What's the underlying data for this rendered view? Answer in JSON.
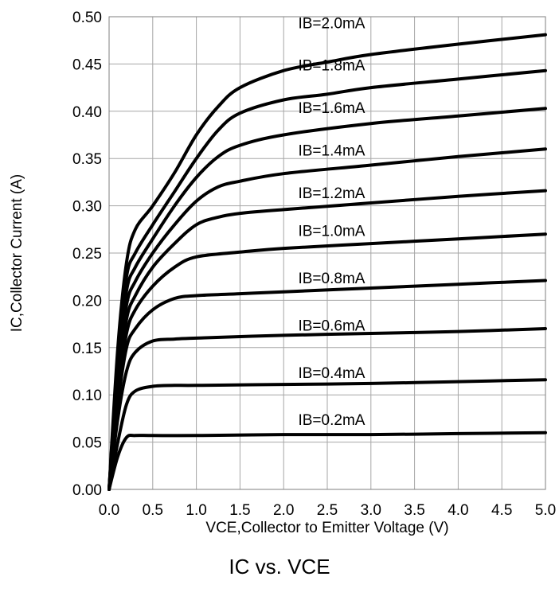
{
  "chart_data": {
    "type": "line",
    "title": "IC vs. VCE",
    "xlabel": "VCE,Collector to Emitter Voltage  (V)",
    "ylabel": "IC,Collector Current (A)",
    "xlim": [
      0,
      5
    ],
    "ylim": [
      0,
      0.5
    ],
    "xticks": [
      "0.0",
      "0.5",
      "1.0",
      "1.5",
      "2.0",
      "2.5",
      "3.0",
      "3.5",
      "4.0",
      "4.5",
      "5.0"
    ],
    "yticks": [
      "0.00",
      "0.05",
      "0.10",
      "0.15",
      "0.20",
      "0.25",
      "0.30",
      "0.35",
      "0.40",
      "0.45",
      "0.50"
    ],
    "grid": true,
    "line_color": "#000000",
    "grid_color": "#a6a6a6",
    "series": [
      {
        "name": "IB=0.2mA",
        "label_x": 2.55,
        "label_y": 0.068,
        "x": [
          0,
          0.1,
          0.2,
          0.3,
          0.5,
          1,
          2,
          3,
          4,
          5
        ],
        "y": [
          0,
          0.035,
          0.055,
          0.057,
          0.057,
          0.057,
          0.058,
          0.058,
          0.059,
          0.06
        ]
      },
      {
        "name": "IB=0.4mA",
        "label_x": 2.55,
        "label_y": 0.118,
        "x": [
          0,
          0.1,
          0.2,
          0.3,
          0.5,
          0.75,
          1,
          2,
          3,
          4,
          5
        ],
        "y": [
          0,
          0.05,
          0.09,
          0.104,
          0.109,
          0.11,
          0.11,
          0.111,
          0.112,
          0.114,
          0.116
        ]
      },
      {
        "name": "IB=0.6mA",
        "label_x": 2.55,
        "label_y": 0.168,
        "x": [
          0,
          0.1,
          0.2,
          0.3,
          0.5,
          0.75,
          1,
          2,
          3,
          4,
          5
        ],
        "y": [
          0,
          0.075,
          0.125,
          0.145,
          0.157,
          0.159,
          0.16,
          0.163,
          0.165,
          0.167,
          0.17
        ]
      },
      {
        "name": "IB=0.8mA",
        "label_x": 2.55,
        "label_y": 0.218,
        "x": [
          0,
          0.1,
          0.2,
          0.3,
          0.5,
          0.75,
          1,
          1.5,
          2,
          3,
          4,
          5
        ],
        "y": [
          0,
          0.09,
          0.15,
          0.17,
          0.19,
          0.202,
          0.205,
          0.207,
          0.209,
          0.213,
          0.217,
          0.221
        ]
      },
      {
        "name": "IB=1.0mA",
        "label_x": 2.55,
        "label_y": 0.268,
        "x": [
          0,
          0.1,
          0.2,
          0.3,
          0.5,
          0.75,
          1,
          1.5,
          2,
          3,
          4,
          5
        ],
        "y": [
          0,
          0.1,
          0.165,
          0.19,
          0.215,
          0.235,
          0.246,
          0.251,
          0.255,
          0.26,
          0.265,
          0.27
        ]
      },
      {
        "name": "IB=1.2mA",
        "label_x": 2.55,
        "label_y": 0.308,
        "x": [
          0,
          0.1,
          0.2,
          0.3,
          0.5,
          0.75,
          1,
          1.25,
          1.5,
          2,
          3,
          4,
          5
        ],
        "y": [
          0,
          0.11,
          0.18,
          0.205,
          0.235,
          0.26,
          0.28,
          0.288,
          0.292,
          0.296,
          0.303,
          0.31,
          0.316
        ]
      },
      {
        "name": "IB=1.4mA",
        "label_x": 2.55,
        "label_y": 0.353,
        "x": [
          0,
          0.1,
          0.2,
          0.3,
          0.5,
          0.75,
          1,
          1.25,
          1.5,
          2,
          3,
          4,
          5
        ],
        "y": [
          0,
          0.12,
          0.195,
          0.22,
          0.25,
          0.28,
          0.305,
          0.32,
          0.326,
          0.334,
          0.343,
          0.352,
          0.36
        ]
      },
      {
        "name": "IB=1.6mA",
        "label_x": 2.55,
        "label_y": 0.398,
        "x": [
          0,
          0.1,
          0.2,
          0.3,
          0.5,
          0.75,
          1,
          1.25,
          1.5,
          2,
          3,
          4,
          5
        ],
        "y": [
          0,
          0.13,
          0.21,
          0.235,
          0.265,
          0.3,
          0.33,
          0.352,
          0.364,
          0.375,
          0.387,
          0.395,
          0.403
        ]
      },
      {
        "name": "IB=1.8mA",
        "label_x": 2.55,
        "label_y": 0.443,
        "x": [
          0,
          0.1,
          0.2,
          0.3,
          0.5,
          0.75,
          1,
          1.25,
          1.5,
          2,
          2.5,
          3,
          4,
          5
        ],
        "y": [
          0,
          0.14,
          0.225,
          0.25,
          0.28,
          0.315,
          0.35,
          0.38,
          0.398,
          0.412,
          0.418,
          0.425,
          0.434,
          0.443
        ]
      },
      {
        "name": "IB=2.0mA",
        "label_x": 2.55,
        "label_y": 0.488,
        "x": [
          0,
          0.1,
          0.2,
          0.3,
          0.5,
          0.75,
          1,
          1.25,
          1.5,
          2,
          2.5,
          3,
          4,
          5
        ],
        "y": [
          0,
          0.15,
          0.24,
          0.275,
          0.3,
          0.335,
          0.375,
          0.405,
          0.425,
          0.443,
          0.452,
          0.46,
          0.471,
          0.481
        ]
      }
    ]
  }
}
